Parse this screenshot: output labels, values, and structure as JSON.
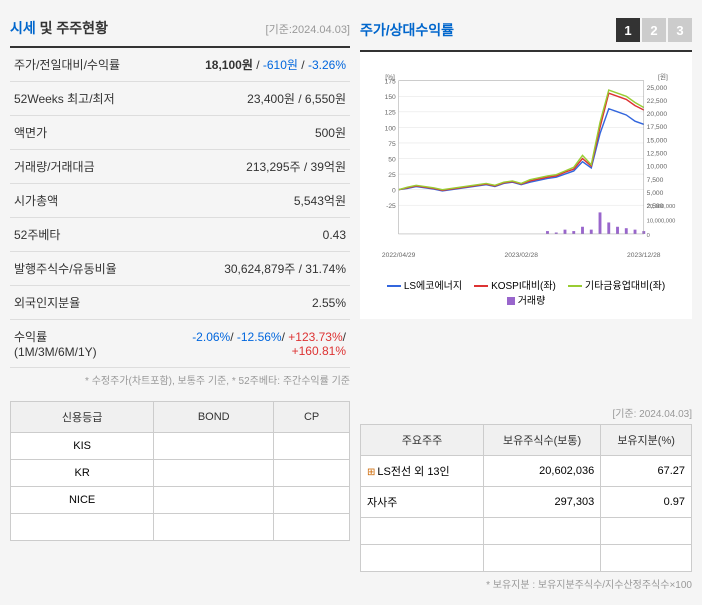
{
  "header": {
    "title_main": "시세",
    "title_sub": " 및 주주현황",
    "date_ref": "[기준:2024.04.03]"
  },
  "info_rows": [
    {
      "label": "주가/전일대비/수익률",
      "value_parts": [
        {
          "text": "18,100원",
          "cls": "value-bold"
        },
        {
          "text": " / ",
          "cls": ""
        },
        {
          "text": "-610원",
          "cls": "value-blue"
        },
        {
          "text": " / ",
          "cls": ""
        },
        {
          "text": "-3.26%",
          "cls": "value-blue"
        }
      ]
    },
    {
      "label": "52Weeks 최고/최저",
      "value": "23,400원 / 6,550원"
    },
    {
      "label": "액면가",
      "value": "500원"
    },
    {
      "label": "거래량/거래대금",
      "value": "213,295주 / 39억원"
    },
    {
      "label": "시가총액",
      "value": "5,543억원"
    },
    {
      "label": "52주베타",
      "value": "0.43"
    },
    {
      "label": "발행주식수/유동비율",
      "value": "30,624,879주 / 31.74%"
    },
    {
      "label": "외국인지분율",
      "value": "2.55%"
    },
    {
      "label": "수익률 (1M/3M/6M/1Y)",
      "value_parts": [
        {
          "text": "-2.06%",
          "cls": "value-blue"
        },
        {
          "text": "/ ",
          "cls": ""
        },
        {
          "text": "-12.56%",
          "cls": "value-blue"
        },
        {
          "text": "/ ",
          "cls": ""
        },
        {
          "text": "+123.73%",
          "cls": "value-red"
        },
        {
          "text": "/ ",
          "cls": ""
        },
        {
          "text": "+160.81%",
          "cls": "value-red"
        }
      ]
    }
  ],
  "footnote": "* 수정주가(차트포함), 보통주 기준, * 52주베타: 주간수익률 기준",
  "chart": {
    "title": "주가/상대수익률",
    "tabs": [
      "1",
      "2",
      "3"
    ],
    "active_tab": 0,
    "left_axis_label": "[%]",
    "right_axis_label": "[원]",
    "y_left_ticks": [
      -25,
      0,
      25,
      50,
      75,
      100,
      125,
      150,
      175
    ],
    "y_right_ticks": [
      2500,
      5000,
      7500,
      10000,
      12500,
      15000,
      17500,
      20000,
      22500,
      25000
    ],
    "y_right_vol_ticks": [
      0,
      10000000,
      20000000
    ],
    "x_labels": [
      "2022/04/29",
      "2023/02/28",
      "2023/12/28"
    ],
    "series": [
      {
        "name": "LS에코에너지",
        "color": "#3366dd",
        "data": [
          0,
          2,
          5,
          3,
          1,
          -2,
          0,
          2,
          4,
          6,
          8,
          5,
          10,
          12,
          8,
          12,
          15,
          18,
          20,
          25,
          30,
          45,
          35,
          90,
          130,
          125,
          120,
          110,
          105
        ]
      },
      {
        "name": "KOSPI대비(좌)",
        "color": "#dd3333",
        "data": [
          0,
          3,
          6,
          4,
          2,
          -1,
          1,
          3,
          5,
          7,
          9,
          6,
          11,
          13,
          9,
          14,
          17,
          20,
          22,
          28,
          33,
          50,
          38,
          100,
          155,
          150,
          145,
          135,
          128
        ]
      },
      {
        "name": "기타금융업대비(좌)",
        "color": "#99cc33",
        "data": [
          0,
          4,
          7,
          5,
          3,
          0,
          2,
          4,
          6,
          8,
          10,
          7,
          12,
          14,
          10,
          16,
          19,
          22,
          24,
          30,
          36,
          55,
          40,
          108,
          160,
          155,
          150,
          140,
          132
        ]
      },
      {
        "name": "거래량",
        "color": "#9966cc",
        "type": "bar",
        "data": [
          0,
          0,
          0,
          0,
          0,
          0,
          0,
          0,
          0,
          0,
          0,
          0,
          0,
          0,
          0,
          0,
          0,
          2000000,
          1000000,
          3000000,
          2000000,
          5000000,
          3000000,
          15000000,
          8000000,
          5000000,
          4000000,
          3000000,
          2000000
        ]
      }
    ],
    "grid_color": "#e0e0e0",
    "bg_color": "#ffffff"
  },
  "credit_table": {
    "columns": [
      "신용등급",
      "BOND",
      "CP"
    ],
    "rows": [
      [
        "KIS",
        "",
        ""
      ],
      [
        "KR",
        "",
        ""
      ],
      [
        "NICE",
        "",
        ""
      ]
    ]
  },
  "shareholder": {
    "date_ref": "[기준: 2024.04.03]",
    "columns": [
      "주요주주",
      "보유주식수(보통)",
      "보유지분(%)"
    ],
    "rows": [
      {
        "name": "LS전선 외 13인",
        "shares": "20,602,036",
        "pct": "67.27",
        "expandable": true
      },
      {
        "name": "자사주",
        "shares": "297,303",
        "pct": "0.97",
        "expandable": false
      }
    ],
    "footnote": "* 보유지분 : 보유지분주식수/지수산정주식수×100"
  }
}
